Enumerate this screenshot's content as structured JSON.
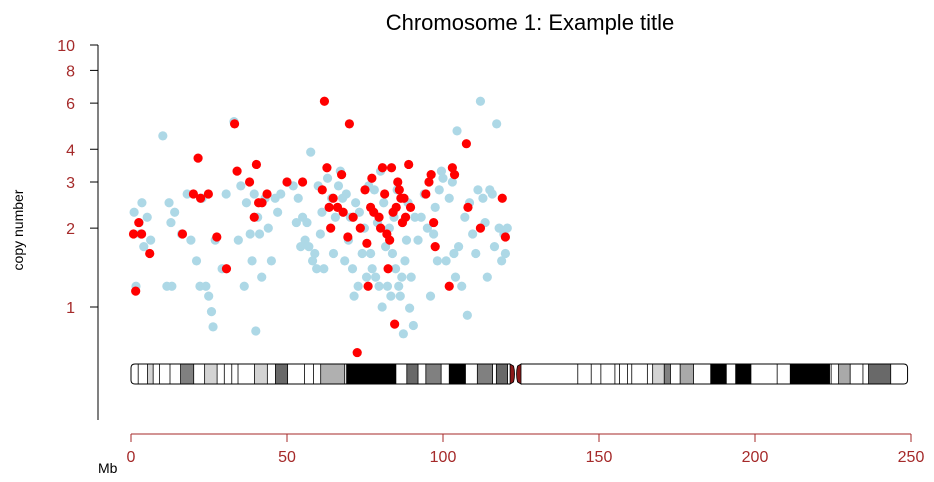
{
  "chart_data": {
    "type": "scatter",
    "title": "Chromosome 1: Example title",
    "ylabel": "copy number",
    "xlabel": "Mb",
    "y_scale": "log",
    "y_ticks": [
      1,
      2,
      3,
      4,
      6,
      8,
      10
    ],
    "x_ticks": [
      0,
      50,
      100,
      150,
      200,
      250
    ],
    "xlim": [
      0,
      250
    ],
    "ylim": [
      0.55,
      10
    ],
    "tick_color": "#a52a2a",
    "series": [
      {
        "color": "#add8e6",
        "points": [
          [
            1.0,
            2.3
          ],
          [
            1.6,
            1.2
          ],
          [
            2.6,
            2.1
          ],
          [
            3.0,
            1.9
          ],
          [
            3.5,
            2.5
          ],
          [
            4.1,
            1.7
          ],
          [
            5.2,
            2.2
          ],
          [
            6.3,
            1.8
          ],
          [
            10.2,
            4.5
          ],
          [
            11.5,
            1.2
          ],
          [
            12.2,
            2.5
          ],
          [
            12.8,
            2.1
          ],
          [
            13.1,
            1.2
          ],
          [
            14.0,
            2.3
          ],
          [
            16.2,
            1.9
          ],
          [
            18.0,
            2.7
          ],
          [
            19.2,
            1.8
          ],
          [
            21.0,
            1.5
          ],
          [
            22.1,
            1.2
          ],
          [
            22.8,
            2.6
          ],
          [
            24.0,
            1.2
          ],
          [
            24.9,
            1.1
          ],
          [
            25.8,
            0.96
          ],
          [
            26.3,
            0.84
          ],
          [
            27.0,
            1.8
          ],
          [
            29.2,
            1.4
          ],
          [
            30.5,
            2.7
          ],
          [
            33.0,
            5.1
          ],
          [
            34.4,
            1.8
          ],
          [
            35.2,
            2.9
          ],
          [
            36.3,
            1.2
          ],
          [
            37.0,
            2.5
          ],
          [
            38.2,
            1.9
          ],
          [
            38.8,
            1.5
          ],
          [
            39.5,
            2.7
          ],
          [
            40.0,
            0.81
          ],
          [
            40.6,
            2.2
          ],
          [
            41.2,
            1.9
          ],
          [
            41.9,
            1.3
          ],
          [
            43.0,
            2.6
          ],
          [
            44.0,
            2.0
          ],
          [
            45.0,
            1.5
          ],
          [
            46.2,
            2.6
          ],
          [
            47.0,
            2.3
          ],
          [
            48.0,
            2.7
          ],
          [
            52.0,
            2.9
          ],
          [
            53.0,
            2.1
          ],
          [
            53.6,
            2.6
          ],
          [
            54.4,
            1.7
          ],
          [
            55.0,
            2.2
          ],
          [
            55.8,
            1.8
          ],
          [
            56.4,
            2.1
          ],
          [
            57.0,
            1.7
          ],
          [
            57.6,
            3.9
          ],
          [
            58.2,
            1.5
          ],
          [
            58.9,
            1.6
          ],
          [
            59.5,
            1.4
          ],
          [
            60.0,
            2.9
          ],
          [
            60.7,
            1.9
          ],
          [
            61.2,
            2.3
          ],
          [
            61.8,
            1.4
          ],
          [
            63.0,
            3.1
          ],
          [
            64.3,
            2.6
          ],
          [
            64.9,
            1.6
          ],
          [
            65.5,
            2.2
          ],
          [
            66.5,
            2.9
          ],
          [
            67.1,
            3.3
          ],
          [
            67.8,
            2.6
          ],
          [
            68.5,
            1.5
          ],
          [
            69.0,
            2.7
          ],
          [
            69.7,
            1.8
          ],
          [
            70.3,
            2.2
          ],
          [
            71.0,
            1.4
          ],
          [
            71.5,
            1.1
          ],
          [
            72.0,
            2.5
          ],
          [
            72.8,
            1.2
          ],
          [
            73.2,
            2.3
          ],
          [
            74.1,
            1.6
          ],
          [
            74.8,
            2.0
          ],
          [
            75.5,
            1.3
          ],
          [
            76.2,
            2.9
          ],
          [
            76.8,
            1.6
          ],
          [
            77.3,
            1.4
          ],
          [
            78.0,
            2.8
          ],
          [
            78.4,
            1.3
          ],
          [
            79.0,
            2.1
          ],
          [
            79.5,
            1.2
          ],
          [
            80.0,
            3.3
          ],
          [
            80.5,
            1.0
          ],
          [
            81.0,
            2.5
          ],
          [
            81.6,
            1.7
          ],
          [
            82.2,
            1.2
          ],
          [
            82.8,
            2.0
          ],
          [
            83.3,
            1.1
          ],
          [
            83.8,
            1.6
          ],
          [
            84.3,
            2.2
          ],
          [
            84.8,
            1.4
          ],
          [
            85.3,
            2.8
          ],
          [
            85.8,
            1.2
          ],
          [
            86.3,
            1.1
          ],
          [
            86.8,
            1.3
          ],
          [
            87.3,
            0.79
          ],
          [
            87.8,
            1.5
          ],
          [
            88.3,
            1.8
          ],
          [
            88.8,
            2.5
          ],
          [
            89.3,
            0.99
          ],
          [
            89.8,
            1.3
          ],
          [
            90.5,
            0.85
          ],
          [
            91.0,
            2.2
          ],
          [
            92.0,
            1.8
          ],
          [
            93.0,
            2.2
          ],
          [
            94.0,
            2.7
          ],
          [
            95.0,
            2.0
          ],
          [
            96.0,
            1.1
          ],
          [
            97.0,
            1.9
          ],
          [
            97.5,
            2.4
          ],
          [
            98.2,
            1.5
          ],
          [
            98.8,
            2.8
          ],
          [
            99.5,
            3.3
          ],
          [
            100.0,
            3.1
          ],
          [
            101.0,
            1.5
          ],
          [
            102.0,
            2.6
          ],
          [
            103.0,
            3.0
          ],
          [
            103.5,
            1.6
          ],
          [
            104.0,
            1.3
          ],
          [
            104.5,
            4.7
          ],
          [
            105.0,
            1.7
          ],
          [
            106.0,
            1.2
          ],
          [
            107.0,
            2.2
          ],
          [
            107.8,
            0.93
          ],
          [
            108.5,
            2.5
          ],
          [
            109.5,
            1.9
          ],
          [
            110.5,
            1.6
          ],
          [
            111.2,
            2.8
          ],
          [
            112.0,
            6.1
          ],
          [
            112.8,
            2.6
          ],
          [
            113.5,
            2.1
          ],
          [
            114.2,
            1.3
          ],
          [
            115.0,
            2.8
          ],
          [
            115.8,
            2.7
          ],
          [
            116.5,
            1.7
          ],
          [
            117.2,
            5.0
          ],
          [
            118.0,
            2.0
          ],
          [
            118.8,
            1.5
          ],
          [
            119.5,
            1.9
          ],
          [
            120.0,
            1.6
          ],
          [
            120.6,
            2.0
          ]
        ]
      },
      {
        "color": "#ff0000",
        "points": [
          [
            0.8,
            1.9
          ],
          [
            1.5,
            1.15
          ],
          [
            2.5,
            2.1
          ],
          [
            3.4,
            1.9
          ],
          [
            6.0,
            1.6
          ],
          [
            16.5,
            1.9
          ],
          [
            20.0,
            2.7
          ],
          [
            21.5,
            3.7
          ],
          [
            22.3,
            2.6
          ],
          [
            24.8,
            2.7
          ],
          [
            27.5,
            1.85
          ],
          [
            30.6,
            1.4
          ],
          [
            33.2,
            5.0
          ],
          [
            34.0,
            3.3
          ],
          [
            38.0,
            3.0
          ],
          [
            39.5,
            2.2
          ],
          [
            40.2,
            3.5
          ],
          [
            40.9,
            2.5
          ],
          [
            42.0,
            2.5
          ],
          [
            43.6,
            2.7
          ],
          [
            50.0,
            3.0
          ],
          [
            55.0,
            3.0
          ],
          [
            61.3,
            2.8
          ],
          [
            62.0,
            6.1
          ],
          [
            62.8,
            3.4
          ],
          [
            63.5,
            2.4
          ],
          [
            64.0,
            2.0
          ],
          [
            64.8,
            2.6
          ],
          [
            66.2,
            2.4
          ],
          [
            67.5,
            3.2
          ],
          [
            68.0,
            2.3
          ],
          [
            69.5,
            1.85
          ],
          [
            70.0,
            5.0
          ],
          [
            71.2,
            2.2
          ],
          [
            72.5,
            0.67
          ],
          [
            73.5,
            2.0
          ],
          [
            75.0,
            2.8
          ],
          [
            75.6,
            1.75
          ],
          [
            76.0,
            1.2
          ],
          [
            76.8,
            2.4
          ],
          [
            77.2,
            3.1
          ],
          [
            77.8,
            2.3
          ],
          [
            79.5,
            2.2
          ],
          [
            80.0,
            2.0
          ],
          [
            80.6,
            3.4
          ],
          [
            81.3,
            2.7
          ],
          [
            82.0,
            1.9
          ],
          [
            82.4,
            1.4
          ],
          [
            82.9,
            1.8
          ],
          [
            83.5,
            3.4
          ],
          [
            84.0,
            2.3
          ],
          [
            84.5,
            0.86
          ],
          [
            85.0,
            2.4
          ],
          [
            85.5,
            3.0
          ],
          [
            86.0,
            2.8
          ],
          [
            86.5,
            2.6
          ],
          [
            87.0,
            2.1
          ],
          [
            87.5,
            2.6
          ],
          [
            88.0,
            2.2
          ],
          [
            89.0,
            3.5
          ],
          [
            89.6,
            2.4
          ],
          [
            94.5,
            2.7
          ],
          [
            95.5,
            3.0
          ],
          [
            96.2,
            3.2
          ],
          [
            97.0,
            2.1
          ],
          [
            97.5,
            1.7
          ],
          [
            102.0,
            1.2
          ],
          [
            103.0,
            3.4
          ],
          [
            103.7,
            3.2
          ],
          [
            107.5,
            4.2
          ],
          [
            108.0,
            2.4
          ],
          [
            112.0,
            2.0
          ],
          [
            119.0,
            2.6
          ],
          [
            120.0,
            1.85
          ]
        ]
      }
    ],
    "ideogram": {
      "start": 0,
      "end": 248.9,
      "centromere": [
        121.5,
        125.0
      ],
      "centromere_color": "#8b1a1a",
      "bands": [
        [
          0,
          2.3,
          "#ffffff"
        ],
        [
          2.3,
          5.3,
          "#ffffff"
        ],
        [
          5.3,
          7.1,
          "#d3d3d3"
        ],
        [
          7.1,
          9.1,
          "#ffffff"
        ],
        [
          9.1,
          12.5,
          "#ffffff"
        ],
        [
          12.5,
          15.9,
          "#ffffff"
        ],
        [
          15.9,
          20.1,
          "#808080"
        ],
        [
          20.1,
          23.6,
          "#ffffff"
        ],
        [
          23.6,
          27.6,
          "#d3d3d3"
        ],
        [
          27.6,
          29.9,
          "#ffffff"
        ],
        [
          29.9,
          32.3,
          "#ffffff"
        ],
        [
          32.3,
          34.3,
          "#ffffff"
        ],
        [
          34.3,
          39.6,
          "#ffffff"
        ],
        [
          39.6,
          43.7,
          "#d3d3d3"
        ],
        [
          43.7,
          46.3,
          "#ffffff"
        ],
        [
          46.3,
          50.2,
          "#696969"
        ],
        [
          50.2,
          55.6,
          "#ffffff"
        ],
        [
          55.6,
          58.5,
          "#ffffff"
        ],
        [
          58.5,
          60.8,
          "#ffffff"
        ],
        [
          60.8,
          68.5,
          "#b0b0b0"
        ],
        [
          68.5,
          69.1,
          "#ffffff"
        ],
        [
          69.1,
          84.9,
          "#000000"
        ],
        [
          84.9,
          88.4,
          "#ffffff"
        ],
        [
          88.4,
          92.0,
          "#696969"
        ],
        [
          92.0,
          94.5,
          "#ffffff"
        ],
        [
          94.5,
          99.4,
          "#808080"
        ],
        [
          99.4,
          102.0,
          "#ffffff"
        ],
        [
          102.0,
          107.2,
          "#000000"
        ],
        [
          107.2,
          111.0,
          "#ffffff"
        ],
        [
          111.0,
          115.9,
          "#808080"
        ],
        [
          115.9,
          117.1,
          "#ffffff"
        ],
        [
          117.1,
          120.7,
          "#696969"
        ],
        [
          120.7,
          121.5,
          "#ffffff"
        ],
        [
          125.0,
          143.2,
          "#ffffff"
        ],
        [
          143.2,
          147.5,
          "#ffffff"
        ],
        [
          147.5,
          150.6,
          "#ffffff"
        ],
        [
          150.6,
          155.1,
          "#ffffff"
        ],
        [
          155.1,
          156.6,
          "#ffffff"
        ],
        [
          156.6,
          159.1,
          "#ffffff"
        ],
        [
          159.1,
          160.5,
          "#ffffff"
        ],
        [
          160.5,
          165.5,
          "#ffffff"
        ],
        [
          165.5,
          167.2,
          "#ffffff"
        ],
        [
          167.2,
          170.9,
          "#d3d3d3"
        ],
        [
          170.9,
          172.9,
          "#808080"
        ],
        [
          172.9,
          176.0,
          "#ffffff"
        ],
        [
          176.0,
          180.3,
          "#a9a9a9"
        ],
        [
          180.3,
          185.8,
          "#ffffff"
        ],
        [
          185.8,
          190.8,
          "#000000"
        ],
        [
          190.8,
          193.8,
          "#ffffff"
        ],
        [
          193.8,
          198.7,
          "#000000"
        ],
        [
          198.7,
          207.1,
          "#ffffff"
        ],
        [
          207.1,
          211.3,
          "#ffffff"
        ],
        [
          211.3,
          214.4,
          "#000000"
        ],
        [
          214.4,
          223.9,
          "#000000"
        ],
        [
          223.9,
          224.4,
          "#ffffff"
        ],
        [
          224.4,
          226.8,
          "#ffffff"
        ],
        [
          226.8,
          230.5,
          "#a9a9a9"
        ],
        [
          230.5,
          234.6,
          "#ffffff"
        ],
        [
          234.6,
          236.4,
          "#ffffff"
        ],
        [
          236.4,
          243.5,
          "#696969"
        ],
        [
          243.5,
          248.9,
          "#ffffff"
        ]
      ],
      "boundaries": [
        2.3,
        5.3,
        7.1,
        9.1,
        12.5,
        15.9,
        20.1,
        23.6,
        27.6,
        29.9,
        32.3,
        34.3,
        39.6,
        43.7,
        46.3,
        50.2,
        55.6,
        58.5,
        60.8,
        68.5,
        69.1,
        84.9,
        88.4,
        92.0,
        94.5,
        99.4,
        102.0,
        107.2,
        111.0,
        115.9,
        117.1,
        120.7,
        143.2,
        147.5,
        150.6,
        155.1,
        156.6,
        159.1,
        160.5,
        165.5,
        167.2,
        170.9,
        172.9,
        176.0,
        180.3,
        185.8,
        190.8,
        193.8,
        198.7,
        207.1,
        211.3,
        214.4,
        223.9,
        224.4,
        226.8,
        230.5,
        234.6,
        236.4,
        243.5
      ]
    }
  }
}
